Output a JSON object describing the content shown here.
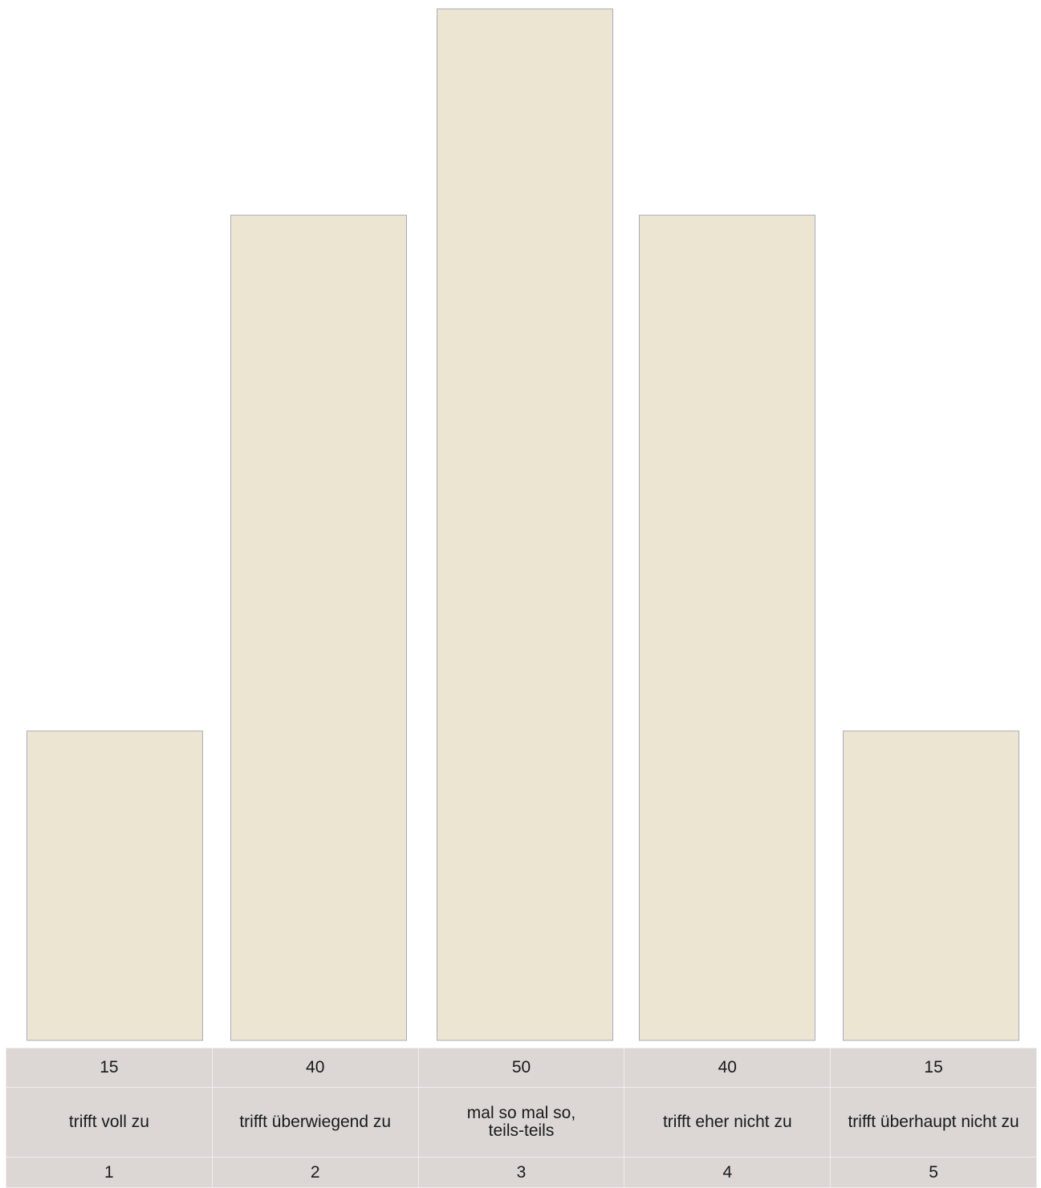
{
  "chart_data": {
    "type": "bar",
    "categories": [
      "1",
      "2",
      "3",
      "4",
      "5"
    ],
    "labels": [
      "trifft voll zu",
      "trifft überwiegend zu",
      "mal so mal so,\nteils-teils",
      "trifft eher nicht zu",
      "trifft überhaupt nicht zu"
    ],
    "values": [
      15,
      40,
      50,
      40,
      15
    ],
    "value_labels": [
      "15",
      "40",
      "50",
      "40",
      "15"
    ],
    "ylim": [
      0,
      50
    ],
    "grid": false,
    "colors": {
      "bar_fill": "#ece5d1",
      "bar_stroke": "#a7adb8",
      "table_bg": "#dcd6d5"
    }
  }
}
